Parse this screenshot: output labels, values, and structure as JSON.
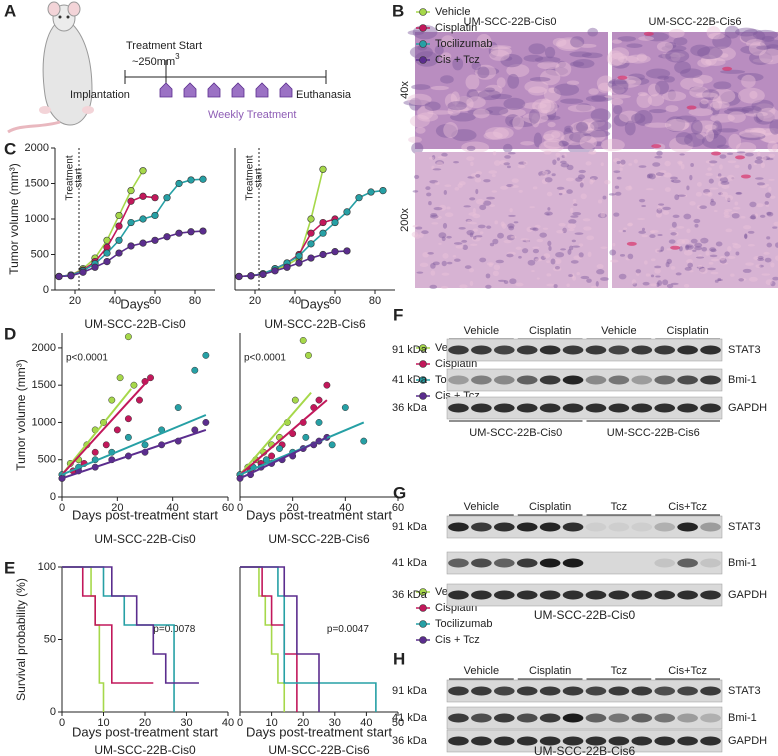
{
  "schematic": {
    "letter": "A",
    "treatment_start": "Treatment Start",
    "volume": "~250mm",
    "volume_sup": "3",
    "start": "Implantation",
    "end": "Euthanasia",
    "weekly": "Weekly Treatment"
  },
  "histology": {
    "letter": "B",
    "columns": [
      "UM-SCC-22B-Cis0",
      "UM-SCC-22B-Cis6"
    ],
    "rows": [
      "40x",
      "200x"
    ]
  },
  "chart_data": [
    {
      "type": "line",
      "letter": "C",
      "title": "UM-SCC-22B-Cis0",
      "x_label": "Days",
      "y_label": "Tumor volume (mm³)",
      "xlim": [
        10,
        90
      ],
      "xticks": [
        20,
        40,
        60,
        80
      ],
      "ylim": [
        0,
        2000
      ],
      "yticks": [
        0,
        500,
        1000,
        1500,
        2000
      ],
      "treatment_line": {
        "text": [
          "Treatment",
          "start"
        ],
        "x": 22
      },
      "x": [
        12,
        18,
        24,
        30,
        36,
        42,
        48,
        54,
        60,
        66,
        72,
        78,
        84
      ],
      "series": [
        {
          "name": "Vehicle",
          "color": "#a6d84a",
          "values": [
            190,
            210,
            300,
            450,
            700,
            1050,
            1400,
            1680,
            null,
            null,
            null,
            null,
            null
          ]
        },
        {
          "name": "Cisplatin",
          "color": "#c2185b",
          "values": [
            190,
            210,
            280,
            400,
            600,
            900,
            1250,
            1320,
            1300,
            null,
            null,
            null,
            null
          ]
        },
        {
          "name": "Tocilizumab",
          "color": "#26a0a5",
          "values": [
            190,
            210,
            270,
            370,
            520,
            700,
            950,
            1000,
            1050,
            1300,
            1500,
            1550,
            1560
          ]
        },
        {
          "name": "Cis + Tcz",
          "color": "#5b2d8e",
          "values": [
            190,
            200,
            250,
            320,
            400,
            520,
            620,
            660,
            700,
            750,
            800,
            820,
            830
          ]
        }
      ]
    },
    {
      "type": "line",
      "title": "UM-SCC-22B-Cis6",
      "x_label": "Days",
      "legend": "right",
      "xlim": [
        10,
        90
      ],
      "xticks": [
        20,
        40,
        60,
        80
      ],
      "ylim": [
        0,
        2000
      ],
      "treatment_line": {
        "text": [
          "Treatment",
          "start"
        ],
        "x": 22
      },
      "x": [
        12,
        18,
        24,
        30,
        36,
        42,
        48,
        54,
        60,
        66,
        72,
        78,
        84
      ],
      "series": [
        {
          "name": "Vehicle",
          "color": "#a6d84a",
          "values": [
            190,
            200,
            220,
            280,
            350,
            450,
            1000,
            1700,
            null,
            null,
            null,
            null,
            null
          ]
        },
        {
          "name": "Cisplatin",
          "color": "#c2185b",
          "values": [
            190,
            200,
            230,
            300,
            380,
            500,
            800,
            950,
            1000,
            null,
            null,
            null,
            null
          ]
        },
        {
          "name": "Tocilizumab",
          "color": "#26a0a5",
          "values": [
            190,
            200,
            230,
            300,
            380,
            480,
            650,
            800,
            950,
            1100,
            1300,
            1380,
            1400
          ]
        },
        {
          "name": "Cis + Tcz",
          "color": "#5b2d8e",
          "values": [
            190,
            200,
            220,
            270,
            320,
            380,
            450,
            500,
            540,
            550,
            null,
            null,
            null
          ]
        }
      ]
    },
    {
      "type": "scatter",
      "letter": "D",
      "title": "UM-SCC-22B-Cis0",
      "x_label": "Days post-treatment start",
      "y_label": "Tumor volume (mm³)",
      "annotation": "p<0.0001",
      "xlim": [
        0,
        60
      ],
      "xticks": [
        0,
        20,
        40,
        60
      ],
      "ylim": [
        0,
        2200
      ],
      "yticks": [
        0,
        500,
        1000,
        1500,
        2000
      ],
      "series": [
        {
          "name": "Vehicle",
          "color": "#a6d84a",
          "x": [
            0,
            3,
            6,
            9,
            12,
            15,
            18,
            21,
            24,
            26
          ],
          "values": [
            300,
            450,
            500,
            700,
            900,
            1000,
            1300,
            1600,
            2150,
            1500
          ],
          "fit_x": [
            0,
            25
          ],
          "fit_y": [
            300,
            1450
          ]
        },
        {
          "name": "Cisplatin",
          "color": "#c2185b",
          "x": [
            0,
            4,
            8,
            12,
            16,
            20,
            24,
            28,
            30,
            32
          ],
          "values": [
            250,
            350,
            450,
            600,
            700,
            900,
            1050,
            1300,
            1550,
            1600
          ],
          "fit_x": [
            0,
            32
          ],
          "fit_y": [
            300,
            1600
          ]
        },
        {
          "name": "Tocilizumab",
          "color": "#26a0a5",
          "x": [
            0,
            6,
            12,
            18,
            24,
            30,
            36,
            42,
            48,
            52
          ],
          "values": [
            300,
            400,
            500,
            600,
            800,
            700,
            900,
            1200,
            1700,
            1900
          ],
          "fit_x": [
            0,
            52
          ],
          "fit_y": [
            300,
            1100
          ]
        },
        {
          "name": "Cis + Tcz",
          "color": "#5b2d8e",
          "x": [
            0,
            6,
            12,
            18,
            24,
            30,
            36,
            42,
            48,
            52
          ],
          "values": [
            250,
            350,
            400,
            500,
            550,
            600,
            700,
            750,
            900,
            1000
          ],
          "fit_x": [
            0,
            52
          ],
          "fit_y": [
            250,
            900
          ]
        }
      ]
    },
    {
      "type": "scatter",
      "title": "UM-SCC-22B-Cis6",
      "x_label": "Days post-treatment start",
      "legend": "right",
      "annotation": "p<0.0001",
      "xlim": [
        0,
        60
      ],
      "xticks": [
        0,
        20,
        40,
        60
      ],
      "ylim": [
        0,
        2200
      ],
      "series": [
        {
          "name": "Vehicle",
          "color": "#a6d84a",
          "x": [
            0,
            3,
            6,
            9,
            12,
            15,
            18,
            21,
            24,
            26
          ],
          "values": [
            300,
            400,
            500,
            600,
            700,
            800,
            1000,
            1300,
            2100,
            1900
          ],
          "fit_x": [
            0,
            27
          ],
          "fit_y": [
            300,
            1400
          ]
        },
        {
          "name": "Cisplatin",
          "color": "#c2185b",
          "x": [
            0,
            4,
            8,
            12,
            16,
            20,
            24,
            28,
            30,
            33
          ],
          "values": [
            300,
            350,
            450,
            550,
            700,
            850,
            1000,
            1200,
            1300,
            1500
          ],
          "fit_x": [
            0,
            33
          ],
          "fit_y": [
            300,
            1300
          ]
        },
        {
          "name": "Tocilizumab",
          "color": "#26a0a5",
          "x": [
            0,
            5,
            10,
            15,
            20,
            25,
            30,
            35,
            40,
            47
          ],
          "values": [
            300,
            400,
            500,
            650,
            600,
            800,
            1000,
            700,
            1200,
            750
          ],
          "fit_x": [
            0,
            47
          ],
          "fit_y": [
            300,
            1000
          ]
        },
        {
          "name": "Cis + Tcz",
          "color": "#5b2d8e",
          "x": [
            0,
            4,
            8,
            12,
            16,
            20,
            24,
            28,
            30,
            33
          ],
          "values": [
            250,
            300,
            400,
            450,
            500,
            550,
            650,
            700,
            750,
            800
          ],
          "fit_x": [
            0,
            33
          ],
          "fit_y": [
            250,
            800
          ]
        }
      ]
    },
    {
      "type": "step",
      "letter": "E",
      "title": "UM-SCC-22B-Cis0",
      "x_label": "Days post-treatment start",
      "y_label": "Survival probability (%)",
      "annotation": "p=0.0078",
      "xlim": [
        0,
        40
      ],
      "xticks": [
        0,
        10,
        20,
        30,
        40
      ],
      "ylim": [
        0,
        100
      ],
      "yticks": [
        0,
        50,
        100
      ],
      "series": [
        {
          "name": "Vehicle",
          "color": "#a6d84a",
          "x": [
            0,
            7,
            8,
            9,
            10
          ],
          "values": [
            100,
            80,
            60,
            20,
            0
          ]
        },
        {
          "name": "Cisplatin",
          "color": "#c2185b",
          "x": [
            0,
            5,
            8,
            12,
            22
          ],
          "values": [
            100,
            80,
            60,
            20,
            20
          ]
        },
        {
          "name": "Tocilizumab",
          "color": "#26a0a5",
          "x": [
            0,
            10,
            15,
            27
          ],
          "values": [
            100,
            80,
            60,
            0
          ]
        },
        {
          "name": "Cis + Tcz",
          "color": "#5b2d8e",
          "x": [
            0,
            12,
            18,
            22,
            25,
            33
          ],
          "values": [
            100,
            80,
            60,
            40,
            20,
            20
          ]
        }
      ]
    },
    {
      "type": "step",
      "title": "UM-SCC-22B-Cis6",
      "x_label": "Days post-treatment start",
      "legend": "right",
      "annotation": "p=0.0047",
      "xlim": [
        0,
        50
      ],
      "xticks": [
        0,
        10,
        20,
        30,
        40,
        50
      ],
      "ylim": [
        0,
        100
      ],
      "series": [
        {
          "name": "Vehicle",
          "color": "#a6d84a",
          "x": [
            0,
            6,
            8,
            10,
            12,
            14
          ],
          "values": [
            100,
            80,
            60,
            40,
            20,
            0
          ]
        },
        {
          "name": "Cisplatin",
          "color": "#c2185b",
          "x": [
            0,
            7,
            10,
            14,
            18
          ],
          "values": [
            100,
            80,
            60,
            40,
            0
          ]
        },
        {
          "name": "Tocilizumab",
          "color": "#26a0a5",
          "x": [
            0,
            12,
            14,
            43
          ],
          "values": [
            100,
            80,
            20,
            0
          ]
        },
        {
          "name": "Cis + Tcz",
          "color": "#5b2d8e",
          "x": [
            0,
            14,
            18,
            25
          ],
          "values": [
            100,
            80,
            40,
            0
          ]
        }
      ]
    }
  ],
  "blots": [
    {
      "letter": "F",
      "lanes": [
        "Vehicle",
        "Cisplatin",
        "Vehicle",
        "Cisplatin"
      ],
      "rows": [
        {
          "kda": "91 kDa",
          "protein": "STAT3"
        },
        {
          "kda": "41 kDa",
          "protein": "Bmi-1"
        },
        {
          "kda": "36 kDa",
          "protein": "GAPDH"
        }
      ],
      "groups": [
        "UM-SCC-22B-Cis0",
        "UM-SCC-22B-Cis6"
      ]
    },
    {
      "letter": "G",
      "lanes": [
        "Vehicle",
        "Cisplatin",
        "Tcz",
        "Cis+Tcz"
      ],
      "rows": [
        {
          "kda": "91 kDa",
          "protein": "STAT3"
        },
        {
          "kda": "41 kDa",
          "protein": "Bmi-1"
        },
        {
          "kda": "36 kDa",
          "protein": "GAPDH"
        }
      ],
      "caption": "UM-SCC-22B-Cis0"
    },
    {
      "letter": "H",
      "lanes": [
        "Vehicle",
        "Cisplatin",
        "Tcz",
        "Cis+Tcz"
      ],
      "rows": [
        {
          "kda": "91 kDa",
          "protein": "STAT3"
        },
        {
          "kda": "41 kDa",
          "protein": "Bmi-1"
        },
        {
          "kda": "36 kDa",
          "protein": "GAPDH"
        }
      ],
      "caption": "UM-SCC-22B-Cis6"
    }
  ]
}
